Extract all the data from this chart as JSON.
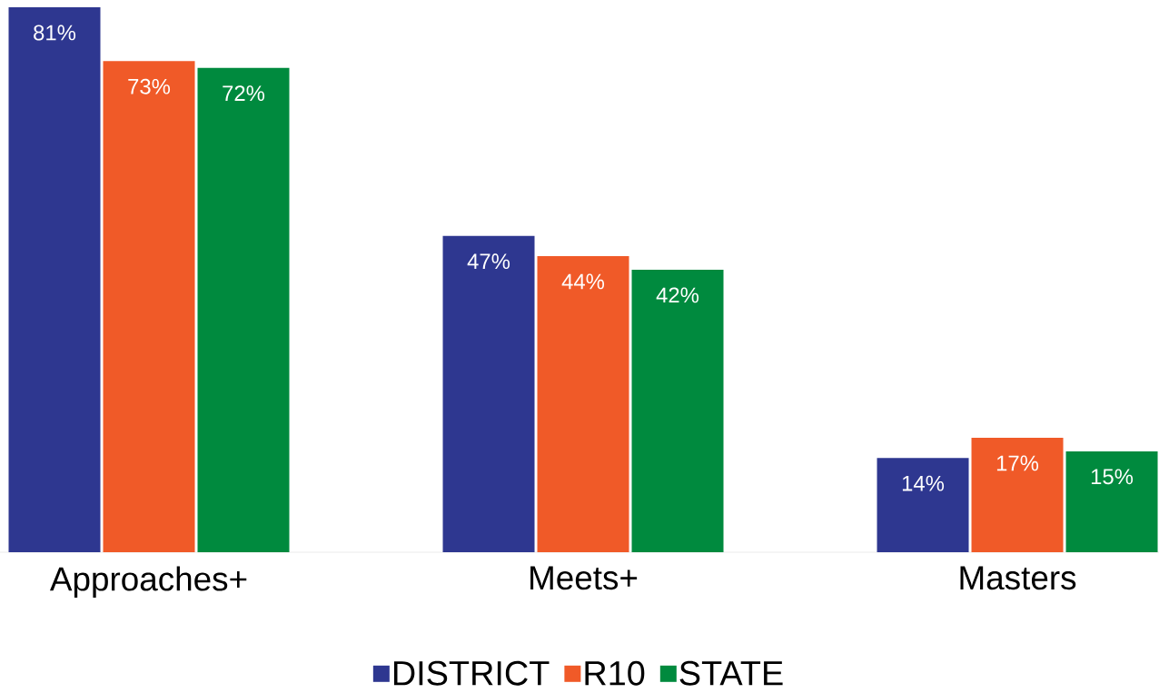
{
  "chart_data": {
    "type": "bar",
    "categories": [
      "Approaches+",
      "Meets+",
      "Masters"
    ],
    "series": [
      {
        "name": "DISTRICT",
        "color": "#2e3790",
        "values": [
          81,
          47,
          14
        ],
        "value_labels": [
          "81%",
          "47%",
          "14%"
        ]
      },
      {
        "name": "R10",
        "color": "#f05a28",
        "values": [
          73,
          44,
          17
        ],
        "value_labels": [
          "73%",
          "44%",
          "17%"
        ]
      },
      {
        "name": "STATE",
        "color": "#008a3e",
        "values": [
          72,
          42,
          15
        ],
        "value_labels": [
          "72%",
          "42%",
          "15%"
        ]
      }
    ],
    "legend": "bottom"
  }
}
